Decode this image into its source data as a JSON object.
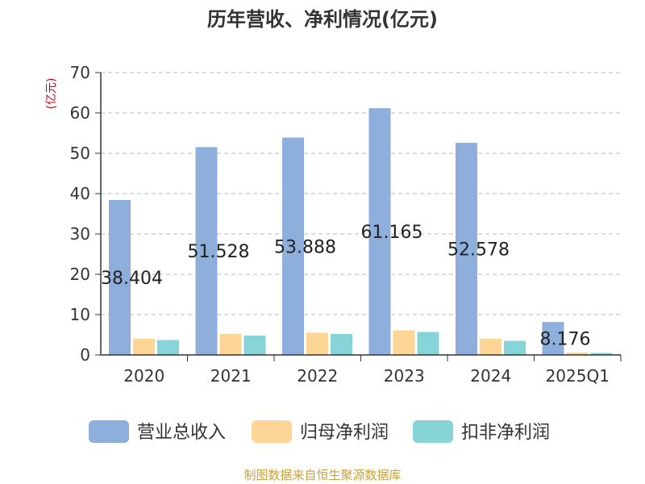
{
  "chart_data": {
    "type": "bar",
    "title": "历年营收、净利情况(亿元)",
    "ylabel": "(亿元)",
    "xlabel": "",
    "ylim": [
      0,
      70
    ],
    "yticks": [
      0,
      10,
      20,
      30,
      40,
      50,
      60,
      70
    ],
    "grid": true,
    "legend_position": "bottom",
    "categories": [
      "2020",
      "2021",
      "2022",
      "2023",
      "2024",
      "2025Q1"
    ],
    "series": [
      {
        "name": "营业总收入",
        "color": "#8eaedb",
        "values": [
          38.404,
          51.528,
          53.888,
          61.165,
          52.578,
          8.176
        ]
      },
      {
        "name": "归母净利润",
        "color": "#fdd695",
        "values": [
          4.0,
          5.2,
          5.5,
          6.1,
          4.0,
          0.6
        ]
      },
      {
        "name": "扣非净利润",
        "color": "#86d4d8",
        "values": [
          3.7,
          4.8,
          5.2,
          5.7,
          3.5,
          0.5
        ]
      }
    ],
    "data_labels": [
      "38.404",
      "51.528",
      "53.888",
      "61.165",
      "52.578",
      "8.176"
    ]
  },
  "footer": {
    "source": "制图数据来自恒生聚源数据库"
  }
}
